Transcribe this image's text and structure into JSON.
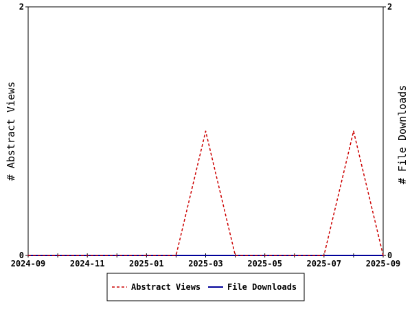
{
  "chart_data": {
    "type": "line",
    "title": "",
    "x": [
      "2024-09",
      "2024-10",
      "2024-11",
      "2024-12",
      "2025-01",
      "2025-02",
      "2025-03",
      "2025-04",
      "2025-05",
      "2025-06",
      "2025-07",
      "2025-08",
      "2025-09"
    ],
    "x_tick_labels": [
      "2024-09",
      "2024-11",
      "2025-01",
      "2025-03",
      "2025-05",
      "2025-07",
      "2025-09"
    ],
    "ylabel_left": "# Abstract Views",
    "ylabel_right": "# File Downloads",
    "ylim_left": [
      0,
      2
    ],
    "ylim_right": [
      0,
      2
    ],
    "y_tick_labels_left": [
      "0",
      "2"
    ],
    "y_tick_labels_right": [
      "0",
      "2"
    ],
    "grid": false,
    "legend_position": "bottom-center",
    "series": [
      {
        "name": "Abstract Views",
        "axis": "left",
        "color": "#cc0000",
        "style": "dashed",
        "values": [
          0,
          0,
          0,
          0,
          0,
          0,
          1,
          0,
          0,
          0,
          0,
          1,
          0
        ]
      },
      {
        "name": "File Downloads",
        "axis": "right",
        "color": "#000099",
        "style": "solid",
        "values": [
          0,
          0,
          0,
          0,
          0,
          0,
          0,
          0,
          0,
          0,
          0,
          0,
          0
        ]
      }
    ]
  }
}
